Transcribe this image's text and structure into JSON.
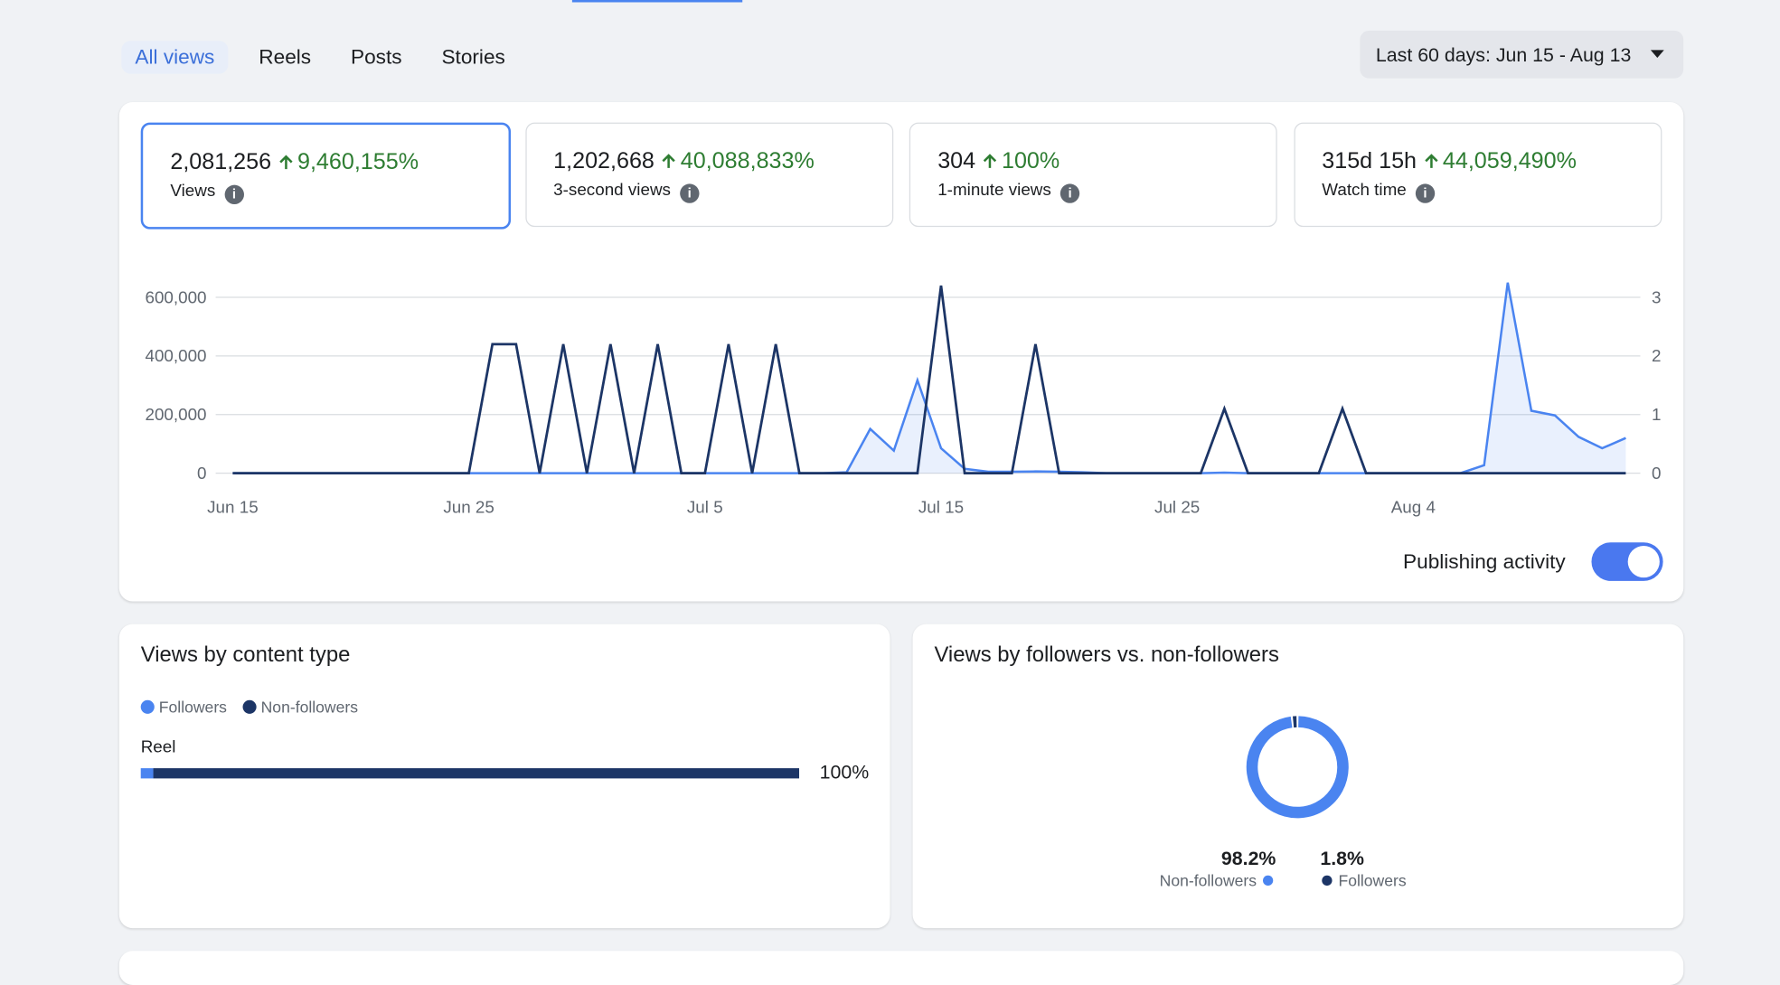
{
  "tabs": [
    "All views",
    "Reels",
    "Posts",
    "Stories"
  ],
  "date_range": "Last 60 days: Jun 15 - Aug 13",
  "metrics": [
    {
      "value": "2,081,256",
      "change": "9,460,155%",
      "label": "Views"
    },
    {
      "value": "1,202,668",
      "change": "40,088,833%",
      "label": "3-second views"
    },
    {
      "value": "304",
      "change": "100%",
      "label": "1-minute views"
    },
    {
      "value": "315d 15h",
      "change": "44,059,490%",
      "label": "Watch time"
    }
  ],
  "chart_data": [
    {
      "type": "line",
      "categories": [
        "Jun 15",
        null,
        null,
        null,
        null,
        null,
        null,
        null,
        null,
        null,
        "Jun 25",
        null,
        null,
        null,
        null,
        null,
        null,
        null,
        null,
        null,
        "Jul 5",
        null,
        null,
        null,
        null,
        null,
        null,
        null,
        null,
        null,
        "Jul 15",
        null,
        null,
        null,
        null,
        null,
        null,
        null,
        null,
        null,
        "Jul 25",
        null,
        null,
        null,
        null,
        null,
        null,
        null,
        null,
        null,
        "Aug 4",
        null,
        null,
        null,
        null,
        null,
        null,
        null,
        null,
        null
      ],
      "series": [
        {
          "name": "Views",
          "color": "#4a84f0",
          "area": true,
          "values": [
            0,
            0,
            0,
            0,
            0,
            0,
            0,
            0,
            0,
            0,
            0,
            0,
            0,
            0,
            0,
            0,
            0,
            0,
            0,
            0,
            0,
            0,
            0,
            0,
            0,
            0,
            3000,
            151000,
            77000,
            317000,
            85000,
            15000,
            5000,
            5000,
            6000,
            5000,
            3000,
            0,
            0,
            0,
            0,
            0,
            2000,
            0,
            0,
            0,
            0,
            0,
            0,
            0,
            0,
            0,
            0,
            27000,
            650000,
            213000,
            197000,
            124000,
            85000,
            120000
          ]
        },
        {
          "name": "Publishing activity",
          "color": "#1c3566",
          "axis": "y2",
          "values": [
            0,
            0,
            0,
            0,
            0,
            0,
            0,
            0,
            0,
            0,
            0,
            2.2,
            2.2,
            0,
            2.2,
            0,
            2.2,
            0,
            2.2,
            0,
            0,
            2.2,
            0,
            2.2,
            0,
            0,
            0,
            0,
            0,
            0,
            3.2,
            0,
            0,
            0,
            2.2,
            0,
            0,
            0,
            0,
            0,
            0,
            0,
            1.1,
            0,
            0,
            0,
            0,
            1.1,
            0,
            0,
            0,
            0,
            0,
            0,
            0,
            0,
            0,
            0,
            0,
            0
          ]
        }
      ],
      "ylim": [
        0,
        600000
      ],
      "yticks": [
        0,
        {
          "value": 200000,
          "label": "200,000"
        },
        {
          "value": 400000,
          "label": "400,000"
        },
        {
          "value": 600000,
          "label": "600,000"
        }
      ],
      "y2lim": [
        0,
        3
      ],
      "y2ticks": [
        0,
        1,
        2,
        3
      ],
      "grid": true,
      "toggle_label": "Publishing activity"
    },
    {
      "type": "stacked_bar",
      "title": "Views by content type",
      "categories": [
        "Reel"
      ],
      "series": [
        {
          "name": "Followers",
          "color": "#4a84f0",
          "values": [
            1.9
          ]
        },
        {
          "name": "Non-followers",
          "color": "#1c3566",
          "values": [
            98.1
          ]
        }
      ],
      "total_label": "100%"
    },
    {
      "type": "donut",
      "title": "Views by followers vs. non-followers",
      "labels": [
        "Non-followers",
        "Followers"
      ],
      "values": [
        98.2,
        1.8
      ],
      "value_labels": [
        "98.2%",
        "1.8%"
      ],
      "colors": [
        "#4a84f0",
        "#1c3566"
      ]
    }
  ]
}
